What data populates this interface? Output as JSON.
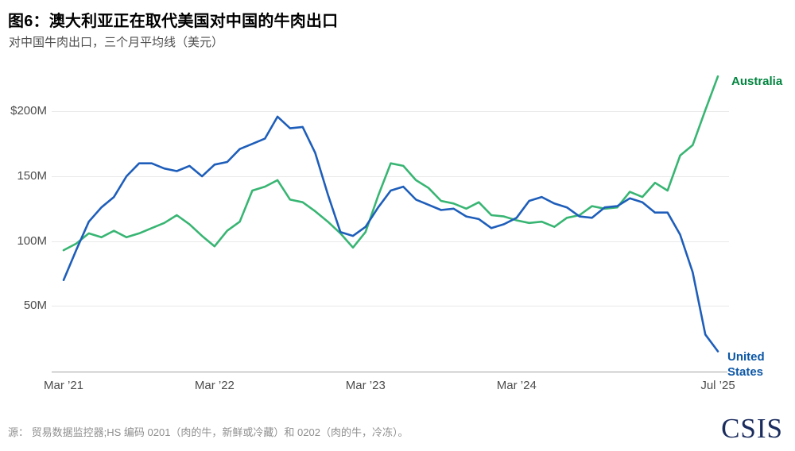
{
  "header": {
    "title": "图6：澳大利亚正在取代美国对中国的牛肉出口",
    "subtitle": "对中国牛肉出口，三个月平均线（美元）"
  },
  "footer": {
    "source": "源： 贸易数据监控器;HS 编码 0201（肉的牛，新鲜或冷藏）和 0202（肉的牛，冷冻）。",
    "logo_text": "CSIS"
  },
  "colors": {
    "australia_line": "#38b573",
    "australia_label": "#00843e",
    "us_line": "#1e5eba",
    "us_label": "#0d57a6",
    "gridline": "#e9e9e9",
    "axis": "#a3a3a3",
    "logo_navy": "#1b2c5e"
  },
  "chart_data": {
    "type": "line",
    "title": "图6：澳大利亚正在取代美国对中国的牛肉出口",
    "subtitle": "对中国牛肉出口，三个月平均线（美元）",
    "unit": "USD millions",
    "x_unit": "month",
    "x_start": "Mar 2021",
    "x_end": "Jul 2025",
    "x_ticks": [
      {
        "index": 0,
        "label": "Mar ’21"
      },
      {
        "index": 12,
        "label": "Mar ’22"
      },
      {
        "index": 24,
        "label": "Mar ’23"
      },
      {
        "index": 36,
        "label": "Mar ’24"
      },
      {
        "index": 52,
        "label": "Jul ’25"
      }
    ],
    "y_ticks": [
      {
        "value": 200,
        "label": "$200M"
      },
      {
        "value": 150,
        "label": "150M"
      },
      {
        "value": 100,
        "label": "100M"
      },
      {
        "value": 50,
        "label": "50M"
      }
    ],
    "ylim": [
      0,
      232
    ],
    "grid": "horizontal",
    "legend_position": "line-end-labels",
    "series": [
      {
        "name": "Australia",
        "end_label": "Australia",
        "color": "#38b573",
        "label_color": "#00843e",
        "values": [
          93,
          98,
          106,
          103,
          108,
          103,
          106,
          110,
          114,
          120,
          113,
          104,
          96,
          108,
          115,
          139,
          142,
          147,
          132,
          130,
          123,
          115,
          106,
          95,
          107,
          135,
          160,
          158,
          147,
          141,
          131,
          129,
          125,
          130,
          120,
          119,
          116,
          114,
          115,
          111,
          118,
          120,
          127,
          125,
          126,
          138,
          134,
          145,
          139,
          166,
          174,
          201,
          227
        ]
      },
      {
        "name": "United States",
        "end_label_line1": "United",
        "end_label_line2": "States",
        "color": "#1e5eba",
        "label_color": "#0d57a6",
        "values": [
          70,
          93,
          115,
          126,
          134,
          150,
          160,
          160,
          156,
          154,
          158,
          150,
          159,
          161,
          171,
          175,
          179,
          196,
          187,
          188,
          168,
          136,
          107,
          104,
          111,
          126,
          139,
          142,
          132,
          128,
          124,
          125,
          119,
          117,
          110,
          113,
          118,
          131,
          134,
          129,
          126,
          119,
          118,
          126,
          127,
          133,
          130,
          122,
          122,
          105,
          76,
          28,
          15
        ]
      }
    ]
  }
}
